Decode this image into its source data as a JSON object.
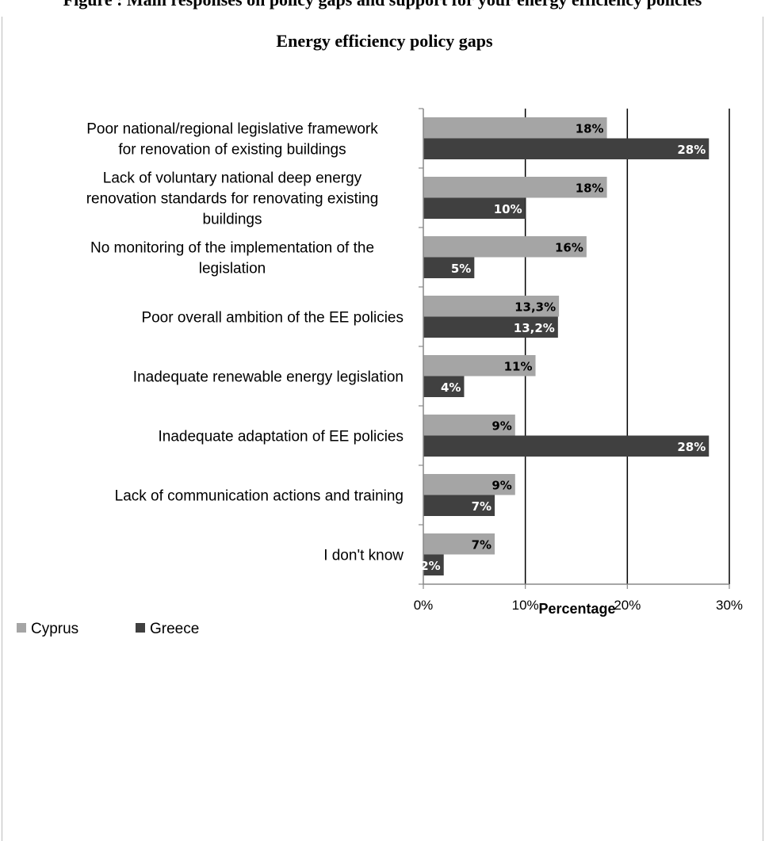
{
  "header": {
    "caption": "Figure : Main responses on policy gaps and support for your energy efficiency policies"
  },
  "chart_data": {
    "type": "bar",
    "orientation": "horizontal",
    "title": "Energy efficiency policy gaps",
    "xlabel": "Percentage",
    "ylabel": "",
    "xlim": [
      0,
      30
    ],
    "x_ticks": [
      "0%",
      "10%",
      "20%",
      "30%"
    ],
    "grid": "vertical lines at 10%, 20%, 30%",
    "legend_position": "bottom-left",
    "categories": [
      [
        "Poor national/regional legislative framework",
        "for renovation of existing buildings"
      ],
      [
        "Lack of voluntary national deep energy",
        "renovation standards for renovating existing",
        "buildings"
      ],
      [
        "No monitoring of the implementation of the",
        "legislation"
      ],
      [
        "Poor overall ambition of the EE policies"
      ],
      [
        "Inadequate renewable energy legislation"
      ],
      [
        "Inadequate adaptation of EE policies"
      ],
      [
        "Lack of communication actions and training"
      ],
      [
        "I don't know"
      ]
    ],
    "series": [
      {
        "name": "Cyprus",
        "color": "#a5a5a5",
        "label_color": "#000000",
        "values": [
          18,
          18,
          16,
          13.3,
          11,
          9,
          9,
          7
        ],
        "labels": [
          "18%",
          "18%",
          "16%",
          "13,3%",
          "11%",
          "9%",
          "9%",
          "7%"
        ]
      },
      {
        "name": "Greece",
        "color": "#404040",
        "label_color": "#ffffff",
        "values": [
          28,
          10,
          5,
          13.2,
          4,
          28,
          7,
          2
        ],
        "labels": [
          "28%",
          "10%",
          "5%",
          "13,2%",
          "4%",
          "28%",
          "7%",
          "2%"
        ]
      }
    ]
  }
}
